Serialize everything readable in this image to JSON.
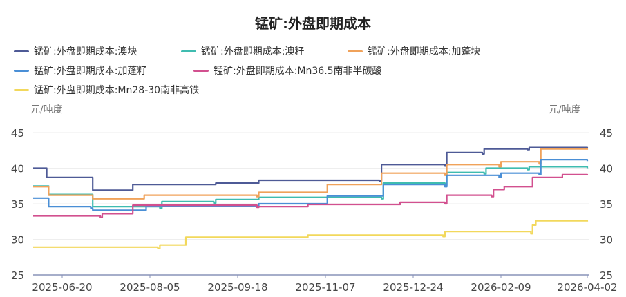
{
  "chart_data": {
    "type": "line",
    "title": "锰矿:外盘即期成本",
    "ylabel_left": "元/吨度",
    "ylabel_right": "元/吨度",
    "ylim": [
      25,
      45
    ],
    "yticks": [
      25,
      30,
      35,
      40,
      45
    ],
    "xticks": [
      "2025-06-20",
      "2025-08-05",
      "2025-09-18",
      "2025-11-07",
      "2025-12-24",
      "2026-02-09",
      "2026-04-02"
    ],
    "grid": true,
    "legend_position": "top",
    "series": [
      {
        "name": "锰矿:外盘即期成本:澳块",
        "color": "#4e5a96",
        "points": [
          [
            "2025-06-05",
            40.0
          ],
          [
            "2025-06-12",
            38.7
          ],
          [
            "2025-07-06",
            36.9
          ],
          [
            "2025-07-27",
            37.7
          ],
          [
            "2025-09-07",
            37.9
          ],
          [
            "2025-09-30",
            38.3
          ],
          [
            "2025-12-06",
            38.2
          ],
          [
            "2025-12-07",
            40.5
          ],
          [
            "2026-01-10",
            40.3
          ],
          [
            "2026-01-11",
            42.2
          ],
          [
            "2026-01-30",
            42.0
          ],
          [
            "2026-01-31",
            42.7
          ],
          [
            "2026-02-25",
            42.6
          ],
          [
            "2026-02-26",
            42.9
          ],
          [
            "2026-04-02",
            42.8
          ]
        ]
      },
      {
        "name": "锰矿:外盘即期成本:澳籽",
        "color": "#3fbcb0",
        "points": [
          [
            "2025-06-05",
            37.5
          ],
          [
            "2025-06-13",
            36.3
          ],
          [
            "2025-07-06",
            34.6
          ],
          [
            "2025-08-10",
            34.4
          ],
          [
            "2025-08-11",
            35.3
          ],
          [
            "2025-09-06",
            35.1
          ],
          [
            "2025-09-07",
            35.6
          ],
          [
            "2025-09-30",
            35.9
          ],
          [
            "2025-12-07",
            35.7
          ],
          [
            "2025-12-08",
            37.9
          ],
          [
            "2026-01-10",
            37.6
          ],
          [
            "2026-01-11",
            39.4
          ],
          [
            "2026-01-31",
            39.2
          ],
          [
            "2026-02-01",
            40.0
          ],
          [
            "2026-02-25",
            39.8
          ],
          [
            "2026-02-26",
            40.2
          ],
          [
            "2026-04-02",
            40.0
          ]
        ]
      },
      {
        "name": "锰矿:外盘即期成本:加蓬块",
        "color": "#f0a25a",
        "points": [
          [
            "2025-06-05",
            37.4
          ],
          [
            "2025-06-13",
            36.2
          ],
          [
            "2025-07-06",
            35.7
          ],
          [
            "2025-08-02",
            36.2
          ],
          [
            "2025-09-29",
            36.0
          ],
          [
            "2025-09-30",
            36.6
          ],
          [
            "2025-11-08",
            37.7
          ],
          [
            "2025-12-07",
            39.3
          ],
          [
            "2026-01-10",
            39.0
          ],
          [
            "2026-01-11",
            40.5
          ],
          [
            "2026-02-08",
            40.2
          ],
          [
            "2026-02-09",
            40.9
          ],
          [
            "2026-03-04",
            40.6
          ],
          [
            "2026-03-05",
            42.7
          ],
          [
            "2026-04-02",
            42.6
          ]
        ]
      },
      {
        "name": "锰矿:外盘即期成本:加蓬籽",
        "color": "#4a8fd6",
        "points": [
          [
            "2025-06-05",
            35.8
          ],
          [
            "2025-06-13",
            34.6
          ],
          [
            "2025-07-05",
            34.4
          ],
          [
            "2025-07-06",
            34.1
          ],
          [
            "2025-08-03",
            34.7
          ],
          [
            "2025-09-30",
            35.0
          ],
          [
            "2025-11-08",
            36.1
          ],
          [
            "2025-12-08",
            37.7
          ],
          [
            "2026-01-10",
            37.4
          ],
          [
            "2026-01-11",
            39.0
          ],
          [
            "2026-02-08",
            38.7
          ],
          [
            "2026-02-09",
            39.3
          ],
          [
            "2026-03-04",
            39.1
          ],
          [
            "2026-03-05",
            41.2
          ],
          [
            "2026-04-02",
            41.0
          ]
        ]
      },
      {
        "name": "锰矿:外盘即期成本:Mn36.5南非半碳酸",
        "color": "#d2508f",
        "points": [
          [
            "2025-06-05",
            33.3
          ],
          [
            "2025-07-10",
            33.1
          ],
          [
            "2025-07-11",
            33.6
          ],
          [
            "2025-07-27",
            34.8
          ],
          [
            "2025-09-29",
            34.5
          ],
          [
            "2025-09-30",
            34.6
          ],
          [
            "2025-10-28",
            34.9
          ],
          [
            "2025-12-17",
            35.2
          ],
          [
            "2026-01-10",
            35.0
          ],
          [
            "2026-01-11",
            36.2
          ],
          [
            "2026-02-04",
            36.0
          ],
          [
            "2026-02-05",
            37.0
          ],
          [
            "2026-02-11",
            37.4
          ],
          [
            "2026-02-28",
            38.7
          ],
          [
            "2026-03-18",
            39.1
          ],
          [
            "2026-04-02",
            39.0
          ]
        ]
      },
      {
        "name": "锰矿:外盘即期成本:Mn28-30南非高铁",
        "color": "#f2d85c",
        "points": [
          [
            "2025-06-05",
            28.9
          ],
          [
            "2025-08-09",
            28.7
          ],
          [
            "2025-08-10",
            29.2
          ],
          [
            "2025-08-23",
            30.3
          ],
          [
            "2025-10-28",
            30.6
          ],
          [
            "2026-01-09",
            30.4
          ],
          [
            "2026-01-10",
            31.1
          ],
          [
            "2026-02-27",
            30.8
          ],
          [
            "2026-02-28",
            32.0
          ],
          [
            "2026-03-02",
            32.6
          ],
          [
            "2026-04-02",
            32.5
          ]
        ]
      }
    ]
  }
}
